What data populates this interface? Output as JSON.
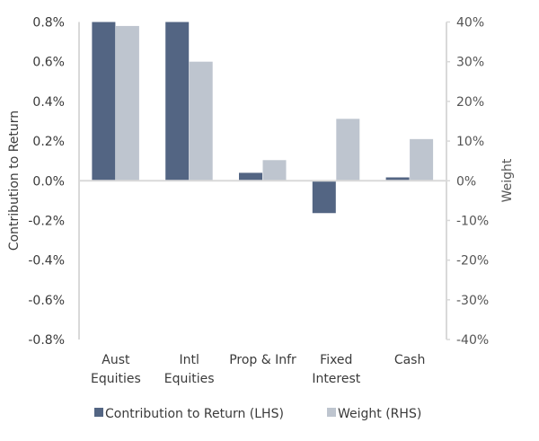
{
  "chart_data": {
    "type": "bar",
    "categories": [
      [
        "Aust",
        "Equities"
      ],
      [
        "Intl",
        "Equities"
      ],
      [
        "Prop & Infr"
      ],
      [
        "Fixed",
        "Interest"
      ],
      [
        "Cash"
      ]
    ],
    "series": [
      {
        "name": "Contribution to Return (LHS)",
        "axis": "left",
        "color": "#536583",
        "values": [
          0.8,
          0.8,
          0.04,
          -0.163,
          0.017
        ]
      },
      {
        "name": "Weight (RHS)",
        "axis": "right",
        "color": "#bec5cf",
        "values": [
          39,
          30,
          5.2,
          15.6,
          10.5
        ]
      }
    ],
    "left_axis": {
      "label": "Contribution to Return",
      "range": [
        -0.8,
        0.8
      ],
      "ticks": [
        "0.8%",
        "0.6%",
        "0.4%",
        "0.2%",
        "0.0%",
        "-0.2%",
        "-0.4%",
        "-0.6%",
        "-0.8%"
      ]
    },
    "right_axis": {
      "label": "Weight",
      "range": [
        -40,
        40
      ],
      "ticks": [
        "40%",
        "30%",
        "20%",
        "10%",
        "0%",
        "-10%",
        "-20%",
        "-30%",
        "-40%"
      ]
    },
    "legend_position": "bottom",
    "grid": false
  }
}
